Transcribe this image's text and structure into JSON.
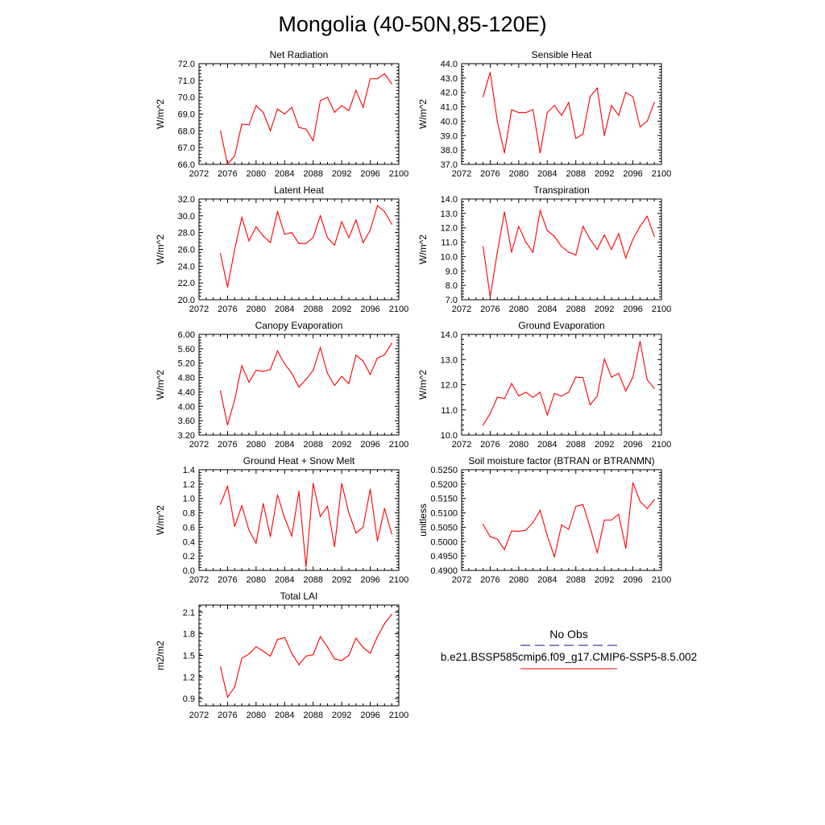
{
  "figure": {
    "title": "Mongolia (40-50N,85-120E)",
    "xlim": [
      2072,
      2100
    ],
    "xticks": [
      2072,
      2076,
      2080,
      2084,
      2088,
      2092,
      2096,
      2100
    ],
    "line_color": "#ff0000",
    "obs_color": "#4040a0"
  },
  "legend": {
    "obs_label": "No Obs",
    "model_label": "b.e21.BSSP585cmip6.f09_g17.CMIP6-SSP5-8.5.002"
  },
  "chart_data": [
    {
      "type": "line",
      "title": "Net Radiation",
      "xlabel": "",
      "ylabel": "W/m^2",
      "ylim": [
        66.0,
        72.0
      ],
      "yticks": [
        "66.0",
        "67.0",
        "68.0",
        "69.0",
        "70.0",
        "71.0",
        "72.0"
      ],
      "ydigits": 1,
      "x": [
        2075,
        2076,
        2077,
        2078,
        2079,
        2080,
        2081,
        2082,
        2083,
        2084,
        2085,
        2086,
        2087,
        2088,
        2089,
        2090,
        2091,
        2092,
        2093,
        2094,
        2095,
        2096,
        2097,
        2098,
        2099
      ],
      "series": [
        {
          "values": [
            68.0,
            66.0,
            66.5,
            68.4,
            68.35,
            69.5,
            69.1,
            68.0,
            69.3,
            69.0,
            69.4,
            68.2,
            68.1,
            67.4,
            69.8,
            70.0,
            69.1,
            69.5,
            69.2,
            70.4,
            69.4,
            71.1,
            71.1,
            71.4,
            70.8
          ]
        }
      ]
    },
    {
      "type": "line",
      "title": "Sensible Heat",
      "xlabel": "",
      "ylabel": "W/m^2",
      "ylim": [
        37.0,
        44.0
      ],
      "yticks": [
        "37.0",
        "38.0",
        "39.0",
        "40.0",
        "41.0",
        "42.0",
        "43.0",
        "44.0"
      ],
      "ydigits": 1,
      "x": [
        2075,
        2076,
        2077,
        2078,
        2079,
        2080,
        2081,
        2082,
        2083,
        2084,
        2085,
        2086,
        2087,
        2088,
        2089,
        2090,
        2091,
        2092,
        2093,
        2094,
        2095,
        2096,
        2097,
        2098,
        2099
      ],
      "series": [
        {
          "values": [
            41.7,
            43.4,
            40.0,
            37.8,
            40.8,
            40.6,
            40.6,
            40.8,
            37.8,
            40.6,
            41.1,
            40.4,
            41.3,
            38.8,
            39.1,
            41.7,
            42.3,
            39.0,
            41.1,
            40.4,
            42.0,
            41.7,
            39.6,
            40.0,
            41.3
          ]
        }
      ]
    },
    {
      "type": "line",
      "title": "Latent Heat",
      "xlabel": "",
      "ylabel": "W/m^2",
      "ylim": [
        20.0,
        32.0
      ],
      "yticks": [
        "20.0",
        "22.0",
        "24.0",
        "26.0",
        "28.0",
        "30.0",
        "32.0"
      ],
      "ydigits": 1,
      "x": [
        2075,
        2076,
        2077,
        2078,
        2079,
        2080,
        2081,
        2082,
        2083,
        2084,
        2085,
        2086,
        2087,
        2088,
        2089,
        2090,
        2091,
        2092,
        2093,
        2094,
        2095,
        2096,
        2097,
        2098,
        2099
      ],
      "series": [
        {
          "values": [
            25.5,
            21.5,
            26.0,
            29.8,
            27.0,
            28.7,
            27.6,
            26.8,
            30.5,
            27.8,
            28.0,
            26.7,
            26.7,
            27.4,
            30.0,
            27.4,
            26.5,
            29.3,
            27.4,
            29.5,
            26.8,
            28.3,
            31.2,
            30.5,
            29.0
          ]
        }
      ]
    },
    {
      "type": "line",
      "title": "Transpiration",
      "xlabel": "",
      "ylabel": "W/m^2",
      "ylim": [
        7.0,
        14.0
      ],
      "yticks": [
        "7.0",
        "8.0",
        "9.0",
        "10.0",
        "11.0",
        "12.0",
        "13.0",
        "14.0"
      ],
      "ydigits": 1,
      "x": [
        2075,
        2076,
        2077,
        2078,
        2079,
        2080,
        2081,
        2082,
        2083,
        2084,
        2085,
        2086,
        2087,
        2088,
        2089,
        2090,
        2091,
        2092,
        2093,
        2094,
        2095,
        2096,
        2097,
        2098,
        2099
      ],
      "series": [
        {
          "values": [
            10.7,
            7.2,
            10.3,
            13.1,
            10.3,
            12.1,
            11.0,
            10.3,
            13.2,
            11.8,
            11.4,
            10.7,
            10.3,
            10.1,
            12.1,
            11.2,
            10.5,
            11.5,
            10.5,
            11.6,
            9.9,
            11.2,
            12.1,
            12.8,
            11.4
          ]
        }
      ]
    },
    {
      "type": "line",
      "title": "Canopy Evaporation",
      "xlabel": "",
      "ylabel": "W/m^2",
      "ylim": [
        3.2,
        6.0
      ],
      "yticks": [
        "3.20",
        "3.60",
        "4.00",
        "4.40",
        "4.80",
        "5.20",
        "5.60",
        "6.00"
      ],
      "ydigits": 2,
      "x": [
        2075,
        2076,
        2077,
        2078,
        2079,
        2080,
        2081,
        2082,
        2083,
        2084,
        2085,
        2086,
        2087,
        2088,
        2089,
        2090,
        2091,
        2092,
        2093,
        2094,
        2095,
        2096,
        2097,
        2098,
        2099
      ],
      "series": [
        {
          "values": [
            4.43,
            3.48,
            4.18,
            5.13,
            4.67,
            5.0,
            4.97,
            5.02,
            5.54,
            5.18,
            4.92,
            4.53,
            4.75,
            5.0,
            5.63,
            4.92,
            4.58,
            4.83,
            4.63,
            5.42,
            5.26,
            4.88,
            5.34,
            5.43,
            5.75
          ]
        }
      ]
    },
    {
      "type": "line",
      "title": "Ground Evaporation",
      "xlabel": "",
      "ylabel": "W/m^2",
      "ylim": [
        10.0,
        14.0
      ],
      "yticks": [
        "10.0",
        "11.0",
        "12.0",
        "13.0",
        "14.0"
      ],
      "ydigits": 1,
      "x": [
        2075,
        2076,
        2077,
        2078,
        2079,
        2080,
        2081,
        2082,
        2083,
        2084,
        2085,
        2086,
        2087,
        2088,
        2089,
        2090,
        2091,
        2092,
        2093,
        2094,
        2095,
        2096,
        2097,
        2098,
        2099
      ],
      "series": [
        {
          "values": [
            10.4,
            10.85,
            11.5,
            11.45,
            12.05,
            11.55,
            11.7,
            11.5,
            11.7,
            10.8,
            11.65,
            11.55,
            11.7,
            12.3,
            12.28,
            11.2,
            11.55,
            13.02,
            12.3,
            12.45,
            11.75,
            12.3,
            13.72,
            12.2,
            11.85
          ]
        }
      ]
    },
    {
      "type": "line",
      "title": "Ground Heat + Snow Melt",
      "xlabel": "",
      "ylabel": "W/m^2",
      "ylim": [
        0.0,
        1.4
      ],
      "yticks": [
        "0.0",
        "0.2",
        "0.4",
        "0.6",
        "0.8",
        "1.0",
        "1.2",
        "1.4"
      ],
      "ydigits": 1,
      "x": [
        2075,
        2076,
        2077,
        2078,
        2079,
        2080,
        2081,
        2082,
        2083,
        2084,
        2085,
        2086,
        2087,
        2088,
        2089,
        2090,
        2091,
        2092,
        2093,
        2094,
        2095,
        2096,
        2097,
        2098,
        2099
      ],
      "series": [
        {
          "values": [
            0.92,
            1.17,
            0.61,
            0.9,
            0.56,
            0.38,
            0.93,
            0.47,
            1.05,
            0.73,
            0.48,
            1.1,
            0.05,
            1.21,
            0.75,
            0.89,
            0.33,
            1.21,
            0.8,
            0.52,
            0.6,
            1.13,
            0.41,
            0.86,
            0.51
          ]
        }
      ]
    },
    {
      "type": "line",
      "title": "Soil moisture factor (BTRAN or BTRANMN)",
      "xlabel": "",
      "ylabel": "unitless",
      "ylim": [
        0.49,
        0.525
      ],
      "yticks": [
        "0.4900",
        "0.4950",
        "0.5000",
        "0.5050",
        "0.5100",
        "0.5150",
        "0.5200",
        "0.5250"
      ],
      "ydigits": 4,
      "x": [
        2075,
        2076,
        2077,
        2078,
        2079,
        2080,
        2081,
        2082,
        2083,
        2084,
        2085,
        2086,
        2087,
        2088,
        2089,
        2090,
        2091,
        2092,
        2093,
        2094,
        2095,
        2096,
        2097,
        2098,
        2099
      ],
      "series": [
        {
          "values": [
            0.506,
            0.5017,
            0.5009,
            0.4972,
            0.5037,
            0.5036,
            0.504,
            0.5066,
            0.5109,
            0.502,
            0.4947,
            0.5058,
            0.5043,
            0.5122,
            0.5129,
            0.5049,
            0.4961,
            0.5075,
            0.5075,
            0.5095,
            0.4977,
            0.5205,
            0.514,
            0.5115,
            0.5145
          ]
        }
      ]
    },
    {
      "type": "line",
      "title": "Total LAI",
      "xlabel": "",
      "ylabel": "m2/m2",
      "ylim": [
        0.8,
        2.2
      ],
      "yticks": [
        "0.9",
        "1.2",
        "1.5",
        "1.8",
        "2.1"
      ],
      "ydigits": 1,
      "x": [
        2075,
        2076,
        2077,
        2078,
        2079,
        2080,
        2081,
        2082,
        2083,
        2084,
        2085,
        2086,
        2087,
        2088,
        2089,
        2090,
        2091,
        2092,
        2093,
        2094,
        2095,
        2096,
        2097,
        2098,
        2099
      ],
      "series": [
        {
          "values": [
            1.34,
            0.92,
            1.06,
            1.46,
            1.52,
            1.62,
            1.56,
            1.49,
            1.72,
            1.75,
            1.53,
            1.37,
            1.49,
            1.51,
            1.76,
            1.62,
            1.45,
            1.43,
            1.5,
            1.74,
            1.61,
            1.53,
            1.76,
            1.94,
            2.07
          ]
        }
      ]
    }
  ]
}
